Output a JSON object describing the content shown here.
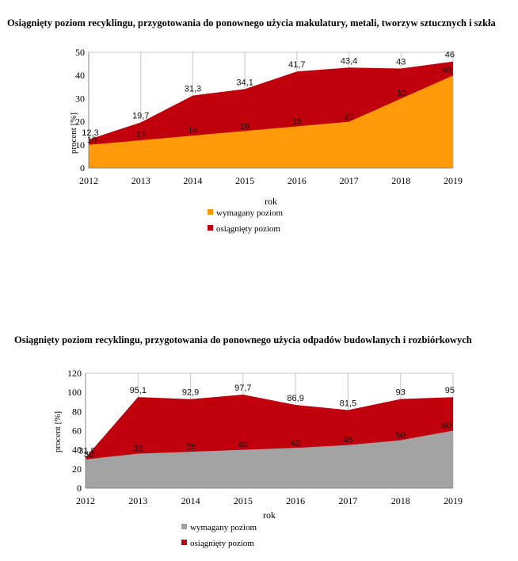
{
  "chart_data": [
    {
      "type": "area",
      "title": "Osiągnięty poziom recyklingu, przygotowania do ponownego użycia makulatury, metali, tworzyw sztucznych i szkła",
      "xlabel": "rok",
      "ylabel": "procent [%]",
      "ylim": [
        0,
        50
      ],
      "yticks": [
        0,
        10,
        20,
        30,
        40,
        50
      ],
      "categories": [
        "2012",
        "2013",
        "2014",
        "2015",
        "2016",
        "2017",
        "2018",
        "2019"
      ],
      "grid": "vertical",
      "legend_position": "bottom",
      "series": [
        {
          "name": "wymagany poziom",
          "color": "#ff9a0a",
          "values": [
            10,
            12,
            14,
            16,
            18,
            20,
            30,
            40
          ],
          "labels": [
            "10",
            "12",
            "14",
            "16",
            "18",
            "20",
            "30",
            "40"
          ]
        },
        {
          "name": "osiągnięty poziom",
          "color": "#c0000c",
          "values": [
            12.3,
            19.7,
            31.3,
            34.1,
            41.7,
            43.4,
            43,
            46
          ],
          "labels": [
            "12,3",
            "19,7",
            "31,3",
            "34,1",
            "41,7",
            "43,4",
            "43",
            "46"
          ]
        }
      ]
    },
    {
      "type": "area",
      "title": "Osiągnięty poziom recyklingu, przygotowania do ponownego użycia odpadów budowlanych i rozbiórkowych",
      "xlabel": "rok",
      "ylabel": "procent [%]",
      "ylim": [
        0,
        120
      ],
      "yticks": [
        0,
        20,
        40,
        60,
        80,
        100,
        120
      ],
      "categories": [
        "2012",
        "2013",
        "2014",
        "2015",
        "2016",
        "2017",
        "2018",
        "2019"
      ],
      "grid": "vertical",
      "legend_position": "bottom",
      "series": [
        {
          "name": "wymagany poziom",
          "color": "#a3a3a3",
          "values": [
            30,
            36,
            38,
            40,
            42,
            45,
            50,
            60
          ],
          "labels": [
            "30",
            "36",
            "38",
            "40",
            "42",
            "45",
            "50",
            "60"
          ]
        },
        {
          "name": "osiągnięty poziom",
          "color": "#c0000c",
          "values": [
            31.9,
            95.1,
            92.9,
            97.7,
            86.9,
            81.5,
            93,
            95
          ],
          "labels": [
            "31,9",
            "95,1",
            "92,9",
            "97,7",
            "86,9",
            "81,5",
            "93",
            "95"
          ]
        }
      ]
    }
  ]
}
